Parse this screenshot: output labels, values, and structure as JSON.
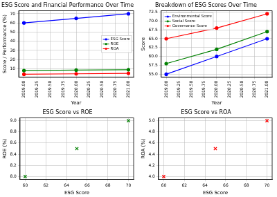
{
  "chart_data": [
    {
      "type": "line",
      "title": "ESG Score and Financial Performance Over Time",
      "x_label": "Year",
      "y_label": "Score / Performance (%)",
      "x": [
        2019,
        2020,
        2021
      ],
      "series": [
        {
          "name": "ESG Score",
          "color": "#0000ff",
          "values": [
            60,
            65,
            70
          ]
        },
        {
          "name": "ROE",
          "color": "#008000",
          "values": [
            8,
            8.5,
            9
          ]
        },
        {
          "name": "ROA",
          "color": "#ff0000",
          "values": [
            4,
            4.5,
            5
          ]
        }
      ],
      "marker": "o",
      "xlim": [
        2018.9,
        2021.1
      ],
      "xticks": [
        {
          "value": 2019,
          "label": "2019.00"
        },
        {
          "value": 2019.25,
          "label": "2019.25"
        },
        {
          "value": 2019.5,
          "label": "2019.50"
        },
        {
          "value": 2019.75,
          "label": "2019.75"
        },
        {
          "value": 2020,
          "label": "2020.00"
        },
        {
          "value": 2020.25,
          "label": "2020.25"
        },
        {
          "value": 2020.5,
          "label": "2020.50"
        },
        {
          "value": 2020.75,
          "label": "2020.75"
        },
        {
          "value": 2021,
          "label": "2021.00"
        }
      ],
      "ylim": [
        0.7,
        73.3
      ],
      "yticks": [
        10,
        20,
        30,
        40,
        50,
        60,
        70
      ],
      "grid": true,
      "legend": "right"
    },
    {
      "type": "line",
      "title": "Breakdown of ESG Scores Over Time",
      "x_label": "Year",
      "y_label": "Score",
      "x": [
        2019,
        2020,
        2021
      ],
      "series": [
        {
          "name": "Environmental Score",
          "color": "#0000ff",
          "values": [
            55,
            60,
            65
          ]
        },
        {
          "name": "Social Score",
          "color": "#008000",
          "values": [
            58,
            62,
            67
          ]
        },
        {
          "name": "Governance Score",
          "color": "#ff0000",
          "values": [
            65,
            68,
            72
          ]
        }
      ],
      "marker": "o",
      "xlim": [
        2018.9,
        2021.1
      ],
      "xticks": [
        {
          "value": 2019,
          "label": "2019.00"
        },
        {
          "value": 2019.25,
          "label": "2019.25"
        },
        {
          "value": 2019.5,
          "label": "2019.50"
        },
        {
          "value": 2019.75,
          "label": "2019.75"
        },
        {
          "value": 2020,
          "label": "2020.00"
        },
        {
          "value": 2020.25,
          "label": "2020.25"
        },
        {
          "value": 2020.5,
          "label": "2020.50"
        },
        {
          "value": 2020.75,
          "label": "2020.75"
        },
        {
          "value": 2021,
          "label": "2021.00"
        }
      ],
      "ylim": [
        54.15,
        72.85
      ],
      "yticks": [
        {
          "value": 55,
          "label": "55.0"
        },
        57.5,
        {
          "value": 60,
          "label": "60.0"
        },
        62.5,
        {
          "value": 65,
          "label": "65.0"
        },
        67.5,
        {
          "value": 70,
          "label": "70.0"
        },
        72.5
      ],
      "grid": true,
      "legend": "upper left"
    },
    {
      "type": "scatter",
      "title": "ESG Score vs ROE",
      "x_label": "ESG Score",
      "y_label": "ROE (%)",
      "x": [
        60,
        65,
        70
      ],
      "values": [
        8,
        8.5,
        9
      ],
      "color": "#008000",
      "marker": "x",
      "xlim": [
        59.5,
        70.5
      ],
      "xticks": [
        60,
        62,
        64,
        66,
        68,
        70
      ],
      "ylim": [
        7.95,
        9.05
      ],
      "yticks": [
        {
          "value": 8,
          "label": "8.0"
        },
        8.2,
        8.4,
        8.6,
        8.8,
        {
          "value": 9,
          "label": "9.0"
        }
      ],
      "grid": true
    },
    {
      "type": "scatter",
      "title": "ESG Score vs ROA",
      "x_label": "ESG Score",
      "y_label": "ROA (%)",
      "x": [
        60,
        65,
        70
      ],
      "values": [
        4,
        4.5,
        5
      ],
      "color": "#ff0000",
      "marker": "x",
      "xlim": [
        59.5,
        70.5
      ],
      "xticks": [
        60,
        62,
        64,
        66,
        68,
        70
      ],
      "ylim": [
        3.95,
        5.05
      ],
      "yticks": [
        {
          "value": 4,
          "label": "4.0"
        },
        4.2,
        4.4,
        4.6,
        4.8,
        {
          "value": 5,
          "label": "5.0"
        }
      ],
      "grid": true
    }
  ]
}
